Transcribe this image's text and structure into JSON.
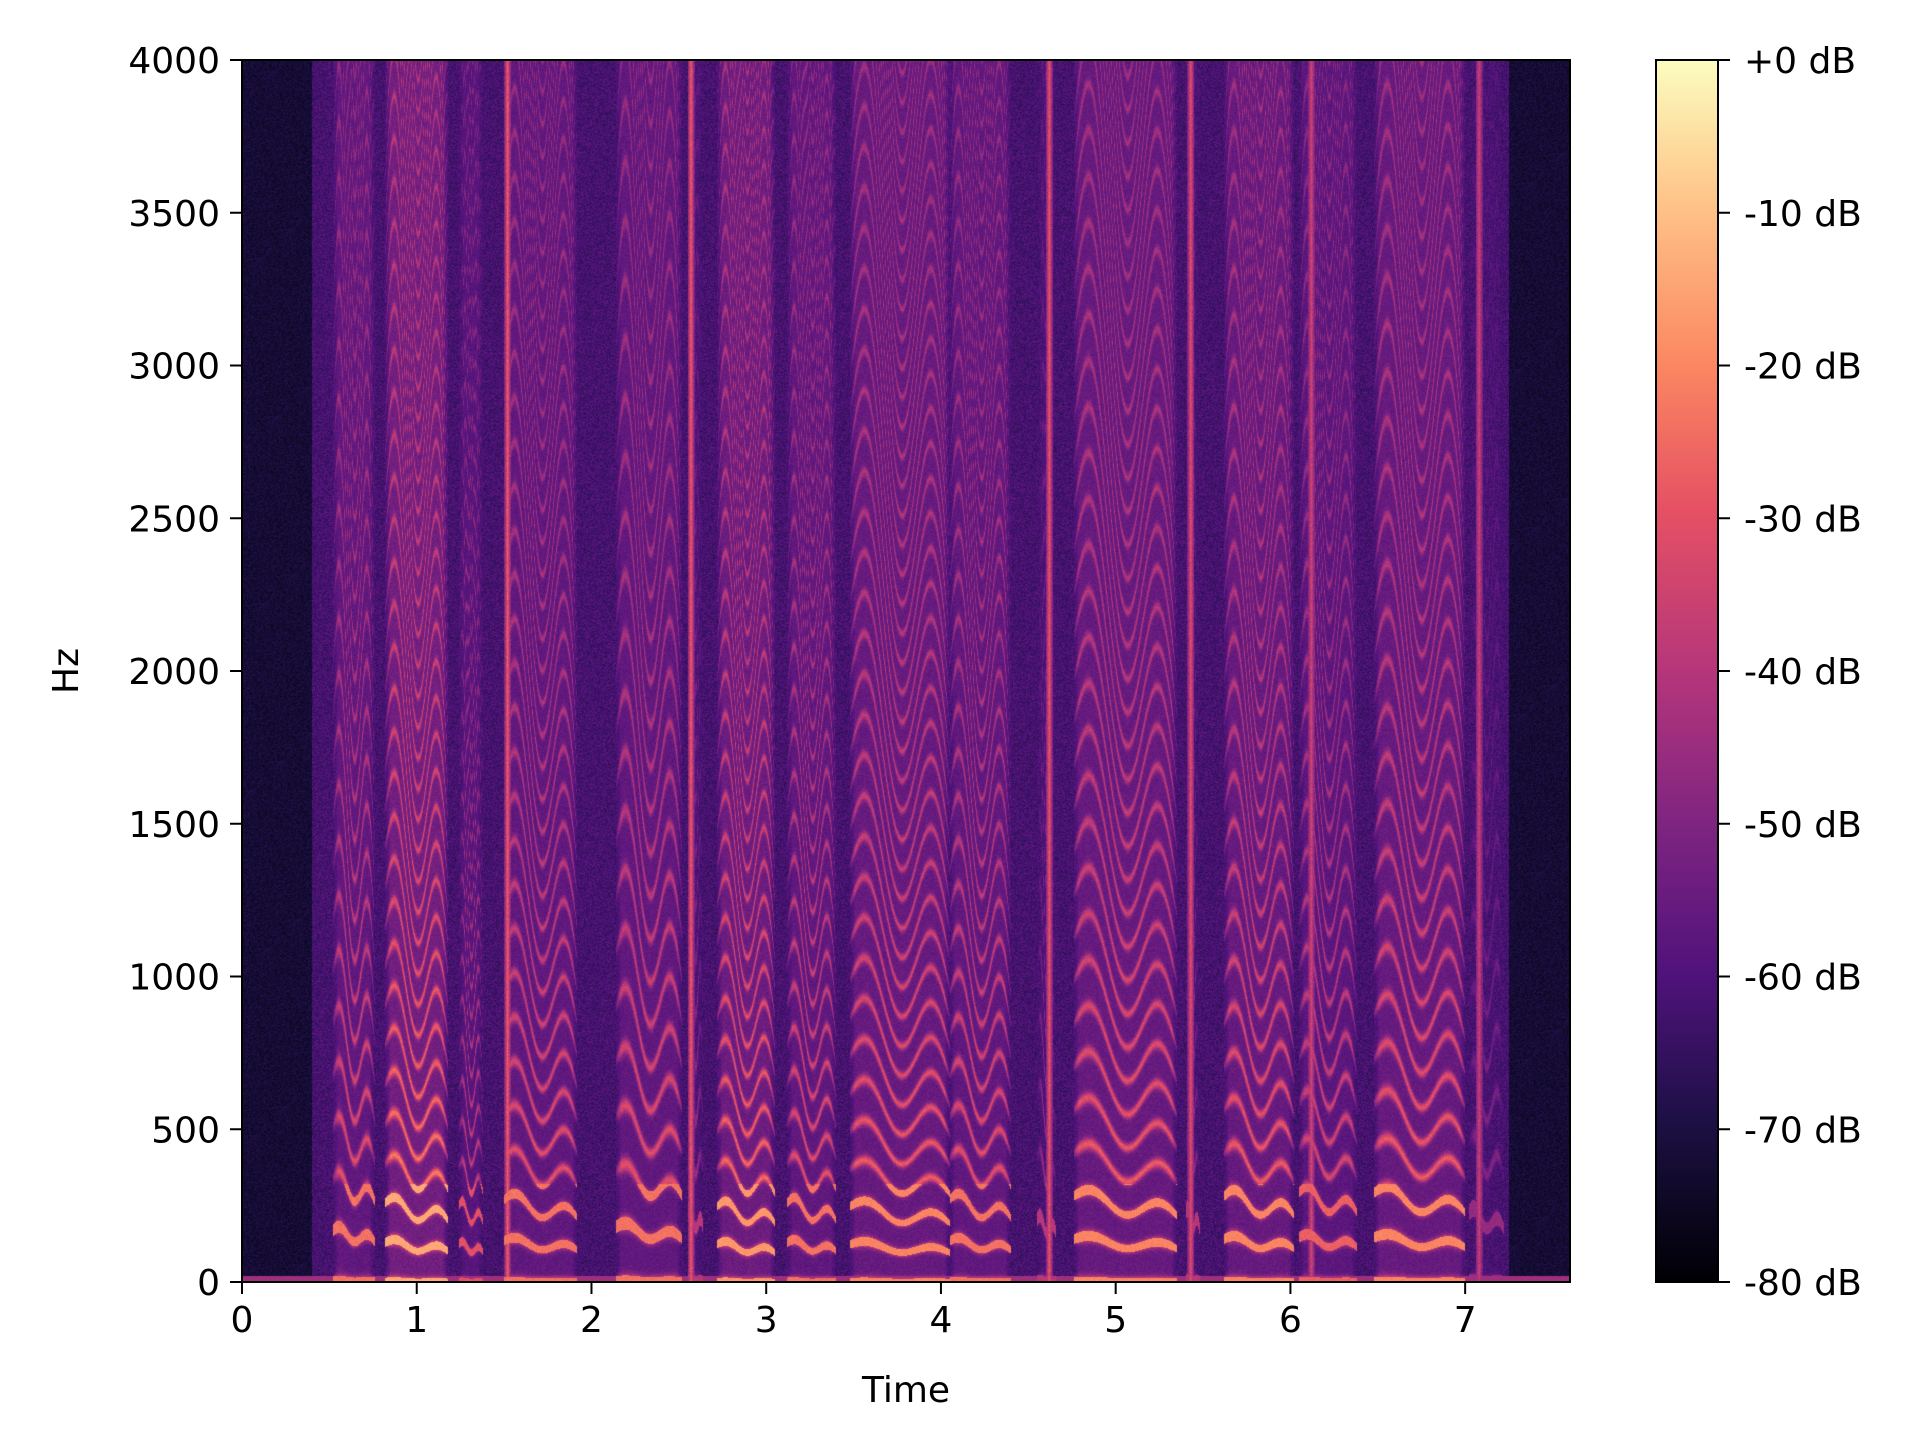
{
  "chart_data": [
    {
      "type": "heatmap",
      "title": "",
      "xlabel": "Time",
      "ylabel": "Hz",
      "xlim": [
        0,
        7.6
      ],
      "ylim": [
        0,
        4000
      ],
      "xticks": [
        0,
        1,
        2,
        3,
        4,
        5,
        6,
        7
      ],
      "xtick_labels": [
        "0",
        "1",
        "2",
        "3",
        "4",
        "5",
        "6",
        "7"
      ],
      "yticks": [
        0,
        500,
        1000,
        1500,
        2000,
        2500,
        3000,
        3500,
        4000
      ],
      "ytick_labels": [
        "0",
        "500",
        "1000",
        "1500",
        "2000",
        "2500",
        "3000",
        "3500",
        "4000"
      ],
      "grid": false,
      "colormap": "magma",
      "value_range_db": [
        -80,
        0
      ],
      "segments": [
        {
          "start": 0.52,
          "end": 0.76,
          "f0": 150,
          "level": 0.85
        },
        {
          "start": 0.82,
          "end": 1.18,
          "f0": 115,
          "level": 1.0
        },
        {
          "start": 1.24,
          "end": 1.38,
          "f0": 110,
          "level": 0.75
        },
        {
          "start": 1.5,
          "end": 1.92,
          "f0": 120,
          "level": 0.85
        },
        {
          "start": 2.14,
          "end": 2.52,
          "f0": 160,
          "level": 0.85
        },
        {
          "start": 2.55,
          "end": 2.64,
          "f0": 200,
          "level": 0.6
        },
        {
          "start": 2.72,
          "end": 3.05,
          "f0": 110,
          "level": 0.95
        },
        {
          "start": 3.12,
          "end": 3.4,
          "f0": 115,
          "level": 0.85
        },
        {
          "start": 3.48,
          "end": 4.05,
          "f0": 110,
          "level": 0.9
        },
        {
          "start": 4.05,
          "end": 4.4,
          "f0": 120,
          "level": 0.85
        },
        {
          "start": 4.55,
          "end": 4.66,
          "f0": 180,
          "level": 0.6
        },
        {
          "start": 4.76,
          "end": 5.35,
          "f0": 125,
          "level": 0.9
        },
        {
          "start": 5.4,
          "end": 5.48,
          "f0": 200,
          "level": 0.6
        },
        {
          "start": 5.62,
          "end": 6.02,
          "f0": 125,
          "level": 0.9
        },
        {
          "start": 6.05,
          "end": 6.38,
          "f0": 130,
          "level": 0.8
        },
        {
          "start": 6.48,
          "end": 7.0,
          "f0": 130,
          "level": 0.9
        },
        {
          "start": 7.02,
          "end": 7.22,
          "f0": 200,
          "level": 0.5
        }
      ],
      "bursts": [
        {
          "t": 1.52,
          "level": 0.7
        },
        {
          "t": 2.57,
          "level": 0.7
        },
        {
          "t": 4.62,
          "level": 0.65
        },
        {
          "t": 5.43,
          "level": 0.6
        },
        {
          "t": 6.12,
          "level": 0.5
        },
        {
          "t": 7.08,
          "level": 0.45
        }
      ]
    },
    {
      "type": "colorbar",
      "tick_values": [
        0,
        -10,
        -20,
        -30,
        -40,
        -50,
        -60,
        -70,
        -80
      ],
      "tick_labels": [
        "+0 dB",
        "-10 dB",
        "-20 dB",
        "-30 dB",
        "-40 dB",
        "-50 dB",
        "-60 dB",
        "-70 dB",
        "-80 dB"
      ],
      "range": [
        -80,
        0
      ]
    }
  ]
}
